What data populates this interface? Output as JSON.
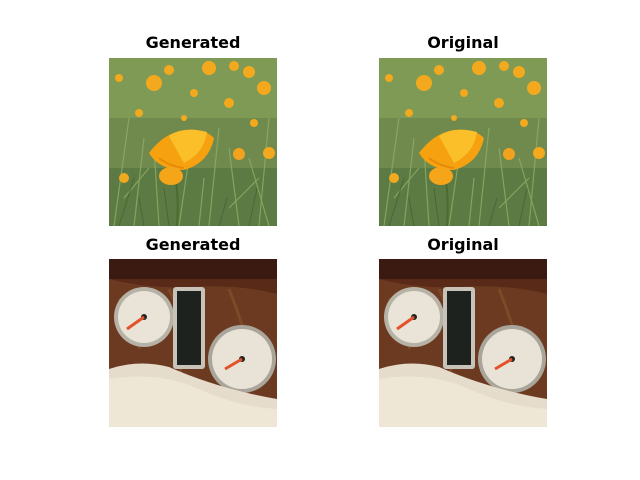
{
  "panels": [
    {
      "title": "Generated",
      "scene": "poppy",
      "icon": "poppy-photo"
    },
    {
      "title": "Original",
      "scene": "poppy",
      "icon": "poppy-photo"
    },
    {
      "title": "Generated",
      "scene": "gauges",
      "icon": "dashboard-gauges-photo"
    },
    {
      "title": "Original",
      "scene": "gauges",
      "icon": "dashboard-gauges-photo"
    }
  ]
}
